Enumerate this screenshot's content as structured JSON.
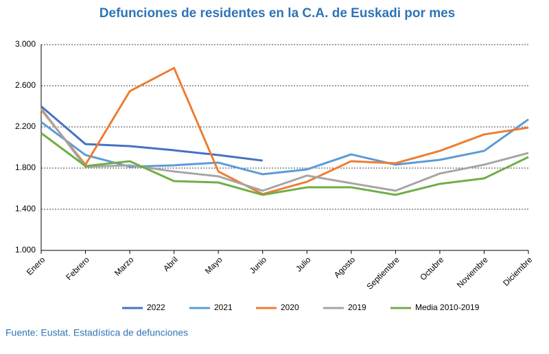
{
  "chart_data": {
    "type": "line",
    "title": "Defunciones de residentes en la C.A. de Euskadi por mes",
    "source": "Fuente: Eustat. Estadística de defunciones",
    "categories": [
      "Enero",
      "Febrero",
      "Marzo",
      "Abril",
      "Mayo",
      "Junio",
      "Julio",
      "Agosto",
      "Septiembre",
      "Octubre",
      "Noviembre",
      "Diciembre"
    ],
    "series": [
      {
        "name": "2022",
        "color": "#4472c4",
        "values": [
          2400,
          2033,
          2013,
          1973,
          1927,
          1873,
          null,
          null,
          null,
          null,
          null,
          null
        ]
      },
      {
        "name": "2021",
        "color": "#5b9bd5",
        "values": [
          2247,
          1927,
          1813,
          1827,
          1853,
          1740,
          1787,
          1933,
          1833,
          1880,
          1967,
          2273
        ]
      },
      {
        "name": "2020",
        "color": "#ed7d31",
        "values": [
          2367,
          1833,
          2547,
          2773,
          1767,
          1547,
          1667,
          1867,
          1847,
          1967,
          2127,
          2193
        ]
      },
      {
        "name": "2019",
        "color": "#a5a5a5",
        "values": [
          2380,
          1813,
          1827,
          1767,
          1720,
          1580,
          1727,
          1653,
          1580,
          1747,
          1833,
          1947
        ]
      },
      {
        "name": "Media 2010-2019",
        "color": "#70ad47",
        "values": [
          2140,
          1820,
          1867,
          1673,
          1660,
          1540,
          1613,
          1613,
          1540,
          1647,
          1700,
          1907
        ]
      }
    ],
    "ylim": [
      1000,
      3000
    ],
    "yticks": [
      {
        "value": 1000,
        "label": "1.000"
      },
      {
        "value": 1400,
        "label": "1.400"
      },
      {
        "value": 1800,
        "label": "1.800"
      },
      {
        "value": 2200,
        "label": "2.200"
      },
      {
        "value": 2600,
        "label": "2.600"
      },
      {
        "value": 3000,
        "label": "3.000"
      }
    ],
    "grid": true
  }
}
